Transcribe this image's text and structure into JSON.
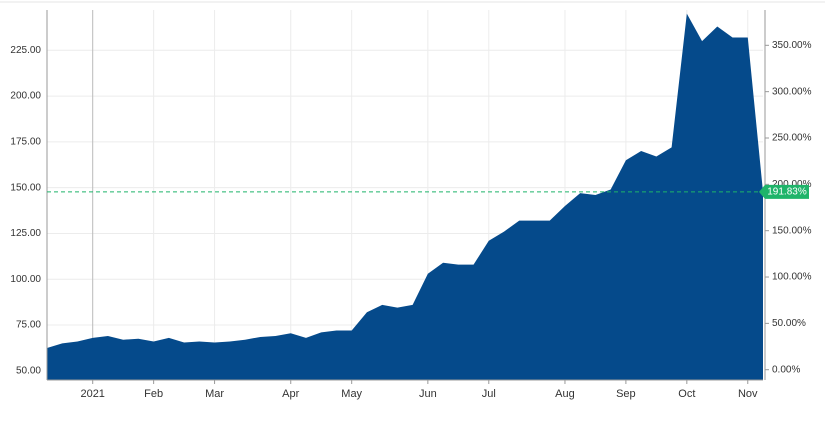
{
  "chart_data": {
    "type": "area",
    "categories": [
      null,
      null,
      null,
      "2021",
      null,
      null,
      null,
      "Feb",
      null,
      null,
      null,
      "Mar",
      null,
      null,
      null,
      null,
      "Apr",
      null,
      null,
      null,
      "May",
      null,
      null,
      null,
      null,
      "Jun",
      null,
      null,
      null,
      "Jul",
      null,
      null,
      null,
      null,
      "Aug",
      null,
      null,
      null,
      "Sep",
      null,
      null,
      null,
      "Oct",
      null,
      null,
      null,
      "Nov",
      null
    ],
    "series": [
      {
        "color": "#054a8b",
        "values": [
          62.5,
          65,
          66,
          68,
          69,
          67,
          67.5,
          66,
          68,
          65.5,
          66,
          65.5,
          66,
          67,
          68.5,
          69,
          70.5,
          68,
          71,
          72,
          72,
          82,
          86,
          84.5,
          86,
          103,
          109,
          108,
          108,
          121,
          126,
          132,
          132,
          132,
          140,
          147,
          146,
          149,
          165,
          170,
          167,
          172,
          245,
          230,
          238,
          232,
          232,
          147.7
        ]
      }
    ],
    "ylim": [
      45,
      247
    ],
    "yticks": [
      {
        "value": 50,
        "label": "50.00"
      },
      {
        "value": 75,
        "label": "75.00"
      },
      {
        "value": 100,
        "label": "100.00"
      },
      {
        "value": 125,
        "label": "125.00"
      },
      {
        "value": 150,
        "label": "150.00"
      },
      {
        "value": 175,
        "label": "175.00"
      },
      {
        "value": 200,
        "label": "200.00"
      },
      {
        "value": 225,
        "label": "225.00"
      }
    ],
    "y2lim": [
      -11.1,
      388.1
    ],
    "y2ticks": [
      {
        "value": 0,
        "label": "0.00%"
      },
      {
        "value": 50,
        "label": "50.00%"
      },
      {
        "value": 100,
        "label": "100.00%"
      },
      {
        "value": 150,
        "label": "150.00%"
      },
      {
        "value": 200,
        "label": "200.00%"
      },
      {
        "value": 250,
        "label": "250.00%"
      },
      {
        "value": 300,
        "label": "300.00%"
      },
      {
        "value": 350,
        "label": "350.00%"
      }
    ],
    "annotation": {
      "value": 191.83,
      "label": "191.83%",
      "color": "#1fb46a"
    },
    "grid": true
  }
}
